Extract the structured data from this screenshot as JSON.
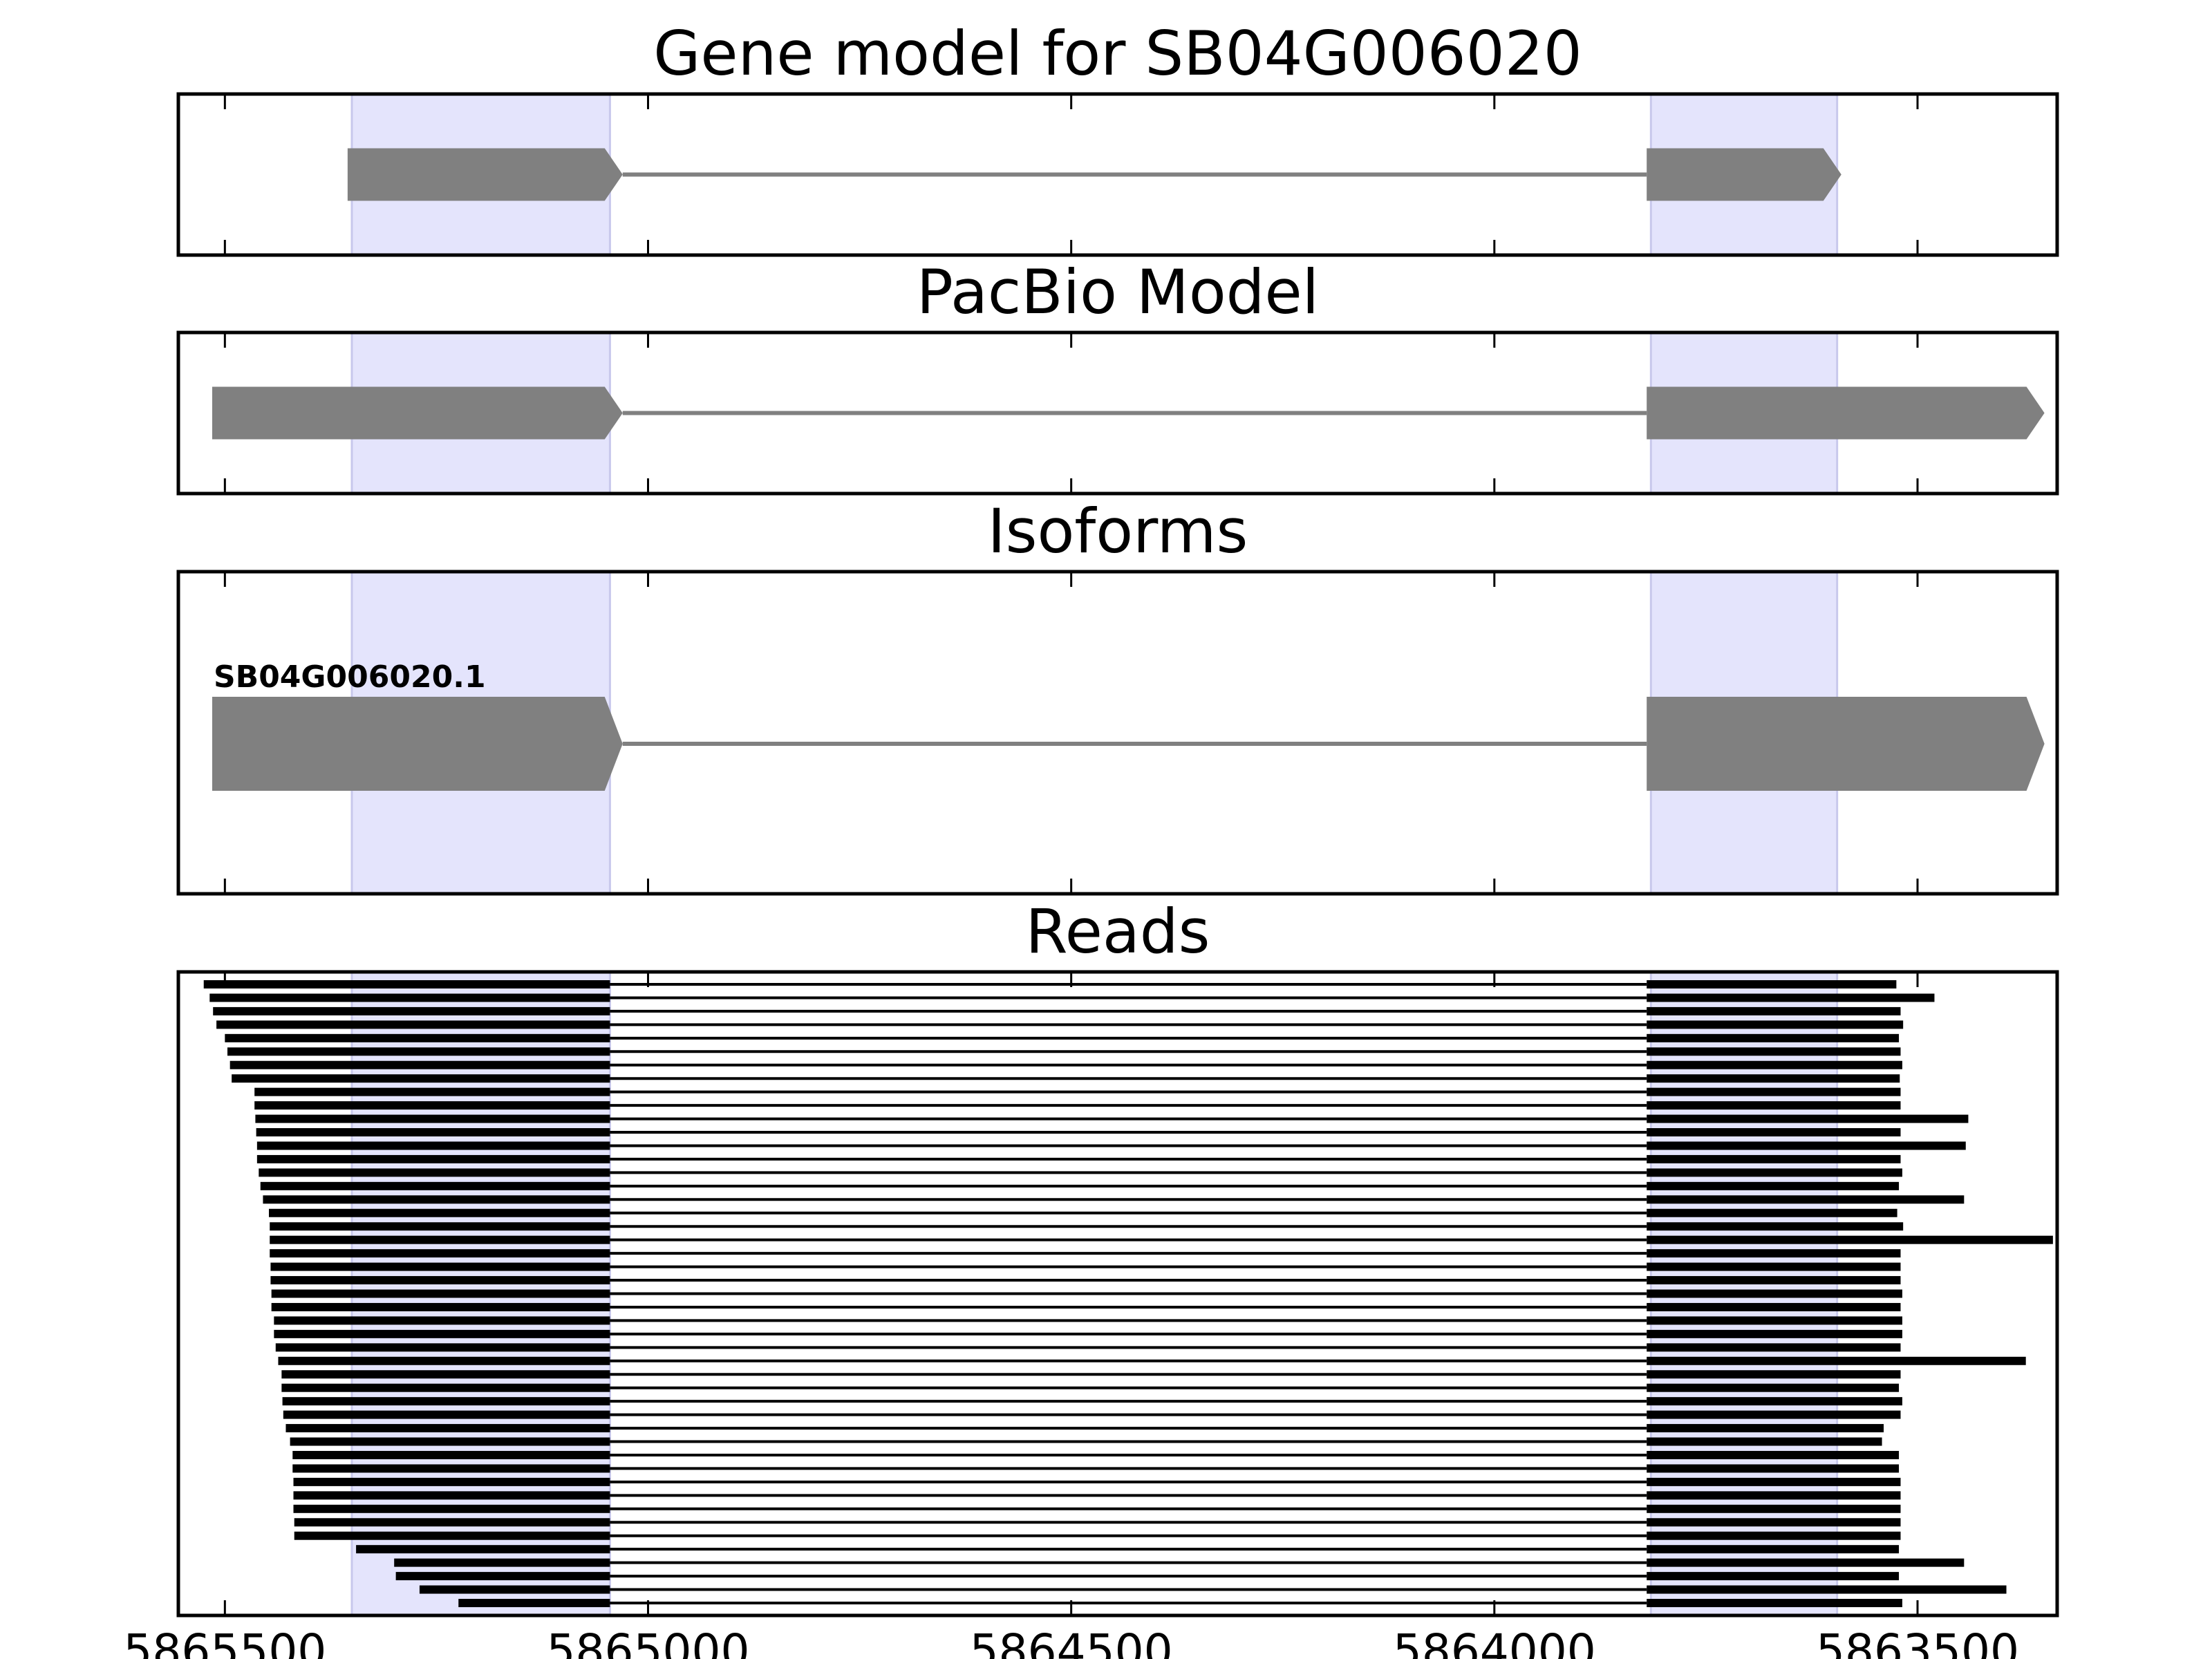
{
  "colors": {
    "shade": "#e4e4fc",
    "shade_edge": "#c8c8ec",
    "model_feature": "#808080",
    "read": "#000000",
    "axes": "#000000"
  },
  "chart_data": [
    {
      "type": "gene-track",
      "panel": "gene_model",
      "title": "Gene model for SB04G006020",
      "xlim": [
        5865555,
        5863335
      ],
      "x_ticks": [
        "5865500",
        "5865000",
        "5864500",
        "5864000",
        "5863500"
      ],
      "x_tick_labels_shown": false,
      "grid": false,
      "highlighted_regions": [
        [
          5865350,
          5865045
        ],
        [
          5863815,
          5863595
        ]
      ],
      "features": [
        {
          "exons": [
            [
              5865355,
              5865030
            ],
            [
              5863820,
              5863590
            ]
          ],
          "strand": "-"
        }
      ]
    },
    {
      "type": "gene-track",
      "panel": "pacbio_model",
      "title": "PacBio Model",
      "xlim": [
        5865555,
        5863335
      ],
      "x_tick_labels_shown": false,
      "grid": false,
      "highlighted_regions": [
        [
          5865350,
          5865045
        ],
        [
          5863815,
          5863595
        ]
      ],
      "features": [
        {
          "exons": [
            [
              5865515,
              5865030
            ],
            [
              5863820,
              5863350
            ]
          ],
          "strand": "-"
        }
      ]
    },
    {
      "type": "gene-track",
      "panel": "isoforms",
      "title": "Isoforms",
      "xlim": [
        5865555,
        5863335
      ],
      "x_tick_labels_shown": false,
      "grid": false,
      "highlighted_regions": [
        [
          5865350,
          5865045
        ],
        [
          5863815,
          5863595
        ]
      ],
      "features": [
        {
          "label": "SB04G006020.1",
          "exons": [
            [
              5865515,
              5865030
            ],
            [
              5863820,
              5863350
            ]
          ],
          "strand": "-"
        }
      ]
    },
    {
      "type": "reads",
      "panel": "reads",
      "title": "Reads",
      "xlim": [
        5865555,
        5863335
      ],
      "x_ticks": [
        "5865500",
        "5865000",
        "5864500",
        "5864000",
        "5863500"
      ],
      "x_tick_labels_shown": true,
      "grid": false,
      "highlighted_regions": [
        [
          5865350,
          5865045
        ],
        [
          5863815,
          5863595
        ]
      ],
      "intron": [
        5865045,
        5863820
      ],
      "reads": [
        [
          5865525,
          5863525
        ],
        [
          5865518,
          5863480
        ],
        [
          5865514,
          5863520
        ],
        [
          5865510,
          5863517
        ],
        [
          5865500,
          5863522
        ],
        [
          5865497,
          5863520
        ],
        [
          5865494,
          5863518
        ],
        [
          5865492,
          5863521
        ],
        [
          5865465,
          5863520
        ],
        [
          5865465,
          5863520
        ],
        [
          5865464,
          5863440
        ],
        [
          5865463,
          5863520
        ],
        [
          5865462,
          5863443
        ],
        [
          5865462,
          5863520
        ],
        [
          5865460,
          5863518
        ],
        [
          5865458,
          5863522
        ],
        [
          5865455,
          5863445
        ],
        [
          5865448,
          5863524
        ],
        [
          5865447,
          5863517
        ],
        [
          5865447,
          5863340
        ],
        [
          5865447,
          5863520
        ],
        [
          5865446,
          5863520
        ],
        [
          5865446,
          5863520
        ],
        [
          5865445,
          5863518
        ],
        [
          5865445,
          5863520
        ],
        [
          5865442,
          5863518
        ],
        [
          5865442,
          5863518
        ],
        [
          5865440,
          5863520
        ],
        [
          5865437,
          5863372
        ],
        [
          5865433,
          5863520
        ],
        [
          5865433,
          5863522
        ],
        [
          5865432,
          5863518
        ],
        [
          5865431,
          5863520
        ],
        [
          5865428,
          5863540
        ],
        [
          5865423,
          5863542
        ],
        [
          5865420,
          5863522
        ],
        [
          5865420,
          5863522
        ],
        [
          5865419,
          5863520
        ],
        [
          5865419,
          5863520
        ],
        [
          5865419,
          5863520
        ],
        [
          5865418,
          5863520
        ],
        [
          5865418,
          5863520
        ],
        [
          5865345,
          5863522
        ],
        [
          5865300,
          5863445
        ],
        [
          5865298,
          5863522
        ],
        [
          5865270,
          5863395
        ],
        [
          5865224,
          5863518
        ]
      ]
    }
  ]
}
